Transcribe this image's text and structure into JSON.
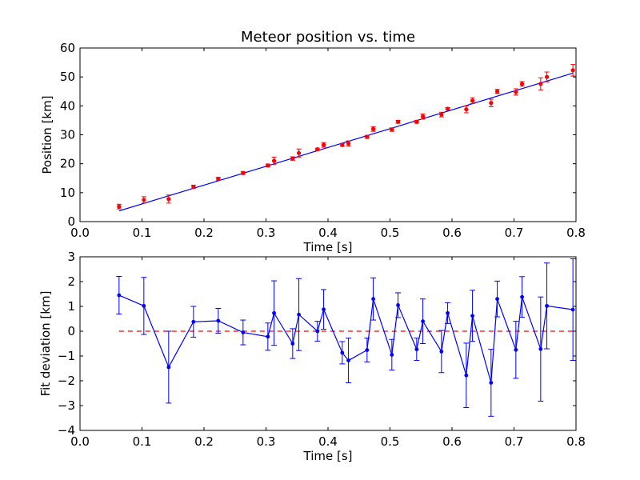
{
  "chart_data": [
    {
      "type": "scatter",
      "title": "Meteor position vs. time",
      "xlabel": "Time [s]",
      "ylabel": "Position [km]",
      "xlim": [
        0.0,
        0.8
      ],
      "ylim": [
        0,
        60
      ],
      "xticks": [
        "0.0",
        "0.1",
        "0.2",
        "0.3",
        "0.4",
        "0.5",
        "0.6",
        "0.7",
        "0.8"
      ],
      "yticks": [
        "0",
        "10",
        "20",
        "30",
        "40",
        "50",
        "60"
      ],
      "grid": false,
      "colors": {
        "points": "#ff0000",
        "errorbars": "#ff0000",
        "fit_line": "#0000ff"
      },
      "fit_line": {
        "x": [
          0.063,
          0.795
        ],
        "y": [
          3.7,
          51.3
        ]
      },
      "series": [
        {
          "x": [
            0.063,
            0.103,
            0.143,
            0.183,
            0.223,
            0.263,
            0.303,
            0.313,
            0.343,
            0.353,
            0.383,
            0.393,
            0.423,
            0.433,
            0.463,
            0.473,
            0.503,
            0.513,
            0.543,
            0.553,
            0.583,
            0.593,
            0.623,
            0.633,
            0.663,
            0.673,
            0.703,
            0.713,
            0.743,
            0.753,
            0.795
          ],
          "y": [
            5.2,
            7.5,
            7.8,
            12.0,
            14.8,
            16.8,
            19.4,
            21.0,
            21.8,
            23.7,
            25.0,
            26.5,
            26.5,
            27.0,
            29.3,
            32.0,
            31.8,
            34.5,
            34.5,
            36.3,
            37.0,
            39.0,
            38.8,
            41.8,
            41.0,
            45.0,
            44.8,
            47.6,
            47.6,
            50.0,
            52.3
          ],
          "yerr": [
            0.8,
            1.1,
            1.4,
            0.6,
            0.5,
            0.5,
            0.5,
            1.3,
            0.6,
            1.4,
            0.4,
            0.8,
            0.5,
            0.9,
            0.5,
            0.8,
            0.6,
            0.5,
            0.5,
            0.9,
            0.8,
            0.4,
            1.2,
            1.0,
            1.3,
            0.7,
            1.1,
            0.8,
            2.1,
            1.7,
            2.0
          ]
        }
      ]
    },
    {
      "type": "line",
      "title": "",
      "xlabel": "Time [s]",
      "ylabel": "Fit deviation [km]",
      "xlim": [
        0.0,
        0.8
      ],
      "ylim": [
        -4,
        3
      ],
      "xticks": [
        "0.0",
        "0.1",
        "0.2",
        "0.3",
        "0.4",
        "0.5",
        "0.6",
        "0.7",
        "0.8"
      ],
      "yticks": [
        "−4",
        "−3",
        "−2",
        "−1",
        "0",
        "1",
        "2",
        "3"
      ],
      "grid": false,
      "colors": {
        "line": "#0000ff",
        "errorbars": "#0000ff",
        "zero_line": "#ff0000"
      },
      "reference_line": {
        "y": 0,
        "x": [
          0.063,
          0.795
        ],
        "style": "dashed"
      },
      "series": [
        {
          "x": [
            0.063,
            0.103,
            0.143,
            0.183,
            0.223,
            0.263,
            0.303,
            0.313,
            0.343,
            0.353,
            0.383,
            0.393,
            0.423,
            0.433,
            0.463,
            0.473,
            0.503,
            0.513,
            0.543,
            0.553,
            0.583,
            0.593,
            0.623,
            0.633,
            0.663,
            0.673,
            0.703,
            0.713,
            0.743,
            0.753,
            0.795
          ],
          "y": [
            1.45,
            1.02,
            -1.45,
            0.38,
            0.42,
            -0.05,
            -0.22,
            0.73,
            -0.5,
            0.67,
            0.0,
            0.88,
            -0.87,
            -1.18,
            -0.76,
            1.3,
            -0.95,
            1.05,
            -0.73,
            0.4,
            -0.82,
            0.73,
            -1.78,
            0.62,
            -2.08,
            1.3,
            -0.75,
            1.38,
            -0.72,
            1.02,
            0.87
          ],
          "yerr": [
            0.76,
            1.15,
            1.45,
            0.62,
            0.5,
            0.5,
            0.55,
            1.3,
            0.6,
            1.45,
            0.4,
            0.8,
            0.45,
            0.9,
            0.48,
            0.85,
            0.62,
            0.5,
            0.45,
            0.9,
            0.85,
            0.42,
            1.3,
            1.03,
            1.35,
            0.72,
            1.15,
            0.82,
            2.1,
            1.73,
            2.05
          ]
        }
      ]
    }
  ]
}
